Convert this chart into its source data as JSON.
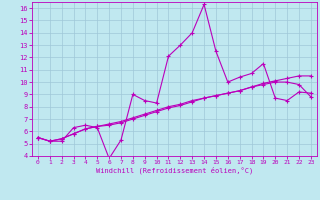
{
  "xlabel": "Windchill (Refroidissement éolien,°C)",
  "xlim": [
    -0.5,
    23.5
  ],
  "ylim": [
    4,
    16.5
  ],
  "xticks": [
    0,
    1,
    2,
    3,
    4,
    5,
    6,
    7,
    8,
    9,
    10,
    11,
    12,
    13,
    14,
    15,
    16,
    17,
    18,
    19,
    20,
    21,
    22,
    23
  ],
  "yticks": [
    4,
    5,
    6,
    7,
    8,
    9,
    10,
    11,
    12,
    13,
    14,
    15,
    16
  ],
  "bg_color": "#c0e8f0",
  "line_color": "#bb00bb",
  "grid_color": "#a0c8d8",
  "series1_x": [
    0,
    1,
    2,
    3,
    4,
    5,
    6,
    7,
    8,
    9,
    10,
    11,
    12,
    13,
    14,
    15,
    16,
    17,
    18,
    19,
    20,
    21,
    22,
    23
  ],
  "series1_y": [
    5.5,
    5.2,
    5.2,
    6.3,
    6.5,
    6.3,
    3.8,
    5.3,
    9.0,
    8.5,
    8.3,
    12.1,
    13.0,
    14.0,
    16.3,
    12.5,
    10.0,
    10.4,
    10.7,
    11.5,
    8.7,
    8.5,
    9.2,
    9.1
  ],
  "series2_x": [
    0,
    1,
    2,
    3,
    4,
    5,
    6,
    7,
    8,
    9,
    10,
    11,
    12,
    13,
    14,
    15,
    16,
    17,
    18,
    19,
    20,
    21,
    22,
    23
  ],
  "series2_y": [
    5.5,
    5.2,
    5.4,
    5.8,
    6.2,
    6.4,
    6.5,
    6.7,
    7.0,
    7.3,
    7.6,
    7.9,
    8.1,
    8.4,
    8.7,
    8.9,
    9.1,
    9.3,
    9.6,
    9.9,
    10.1,
    10.3,
    10.5,
    10.5
  ],
  "series3_x": [
    0,
    1,
    2,
    3,
    4,
    5,
    6,
    7,
    8,
    9,
    10,
    11,
    12,
    13,
    14,
    15,
    16,
    17,
    18,
    19,
    20,
    21,
    22,
    23
  ],
  "series3_y": [
    5.5,
    5.2,
    5.4,
    5.8,
    6.2,
    6.4,
    6.6,
    6.8,
    7.1,
    7.4,
    7.7,
    8.0,
    8.2,
    8.5,
    8.7,
    8.9,
    9.1,
    9.3,
    9.6,
    9.8,
    10.0,
    10.0,
    9.8,
    8.8
  ]
}
